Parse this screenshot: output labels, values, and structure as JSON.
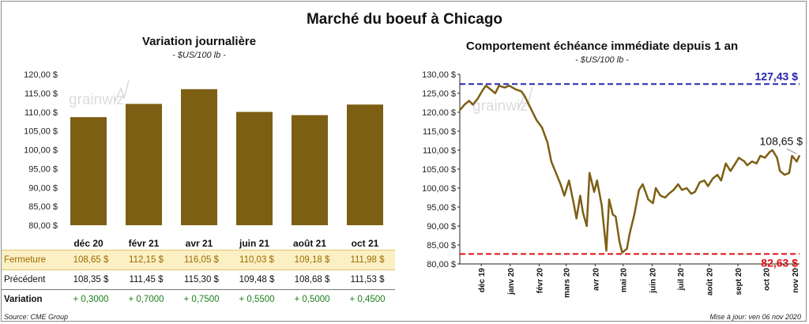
{
  "main_title": "Marché du boeuf à Chicago",
  "footer": {
    "source": "Source: CME Group",
    "updated": "Mise à jour: ven 06 nov 2020"
  },
  "watermark": "grainwiz",
  "colors": {
    "bar": "#7d5f14",
    "line": "#7d5f14",
    "high_line": "#2222aa",
    "low_line": "#dd1111",
    "fermeture_bg": "#fbf0c4",
    "fermeture_text": "#9c6a00",
    "variation_text": "#1a7f1a"
  },
  "table": {
    "rows": [
      {
        "label": "Fermeture",
        "values": [
          "108,65  $",
          "112,15  $",
          "116,05  $",
          "110,03  $",
          "109,18  $",
          "111,98  $"
        ]
      },
      {
        "label": "Précédent",
        "values": [
          "108,35  $",
          "111,45  $",
          "115,30  $",
          "109,48  $",
          "108,68  $",
          "111,53  $"
        ]
      },
      {
        "label": "Variation",
        "values": [
          "+ 0,3000",
          "+ 0,7000",
          "+ 0,7500",
          "+ 0,5500",
          "+ 0,5000",
          "+ 0,4500"
        ]
      }
    ]
  },
  "chart_data": [
    {
      "type": "bar",
      "title": "Variation  journalière",
      "subtitle": "- $US/100 lb -",
      "categories": [
        "déc 20",
        "févr 21",
        "avr 21",
        "juin 21",
        "août 21",
        "oct 21"
      ],
      "values": [
        108.65,
        112.15,
        116.05,
        110.03,
        109.18,
        111.98
      ],
      "ylim": [
        80,
        120
      ],
      "yticks": [
        80,
        85,
        90,
        95,
        100,
        105,
        110,
        115,
        120
      ],
      "ytick_labels": [
        "80,00 $",
        "85,00 $",
        "90,00 $",
        "95,00 $",
        "100,00 $",
        "105,00 $",
        "110,00 $",
        "115,00 $",
        "120,00 $"
      ],
      "grid": false
    },
    {
      "type": "line",
      "title": "Comportement  échéance immédiate depuis 1 an",
      "subtitle": "- $US/100 lb -",
      "ylim": [
        80,
        130
      ],
      "yticks": [
        80,
        85,
        90,
        95,
        100,
        105,
        110,
        115,
        120,
        125,
        130
      ],
      "ytick_labels": [
        "80,00 $",
        "85,00 $",
        "90,00 $",
        "95,00 $",
        "100,00 $",
        "105,00 $",
        "110,00 $",
        "115,00 $",
        "120,00 $",
        "125,00 $",
        "130,00 $"
      ],
      "xticks": [
        "déc 19",
        "janv 20",
        "févr 20",
        "mars 20",
        "avr 20",
        "mai 20",
        "juin 20",
        "juil 20",
        "août 20",
        "sept 20",
        "oct 20",
        "nov 20"
      ],
      "x_start": "2019-11-08",
      "x_end": "2020-11-06",
      "reference_lines": [
        {
          "label": "127,43 $",
          "value": 127.43
        },
        {
          "label": "82,63 $",
          "value": 82.63
        }
      ],
      "last_label": "108,65 $",
      "x": [
        "2019-11-08",
        "2019-11-13",
        "2019-11-18",
        "2019-11-22",
        "2019-11-27",
        "2019-12-03",
        "2019-12-06",
        "2019-12-11",
        "2019-12-16",
        "2019-12-20",
        "2019-12-26",
        "2019-12-31",
        "2020-01-07",
        "2020-01-13",
        "2020-01-17",
        "2020-01-23",
        "2020-01-29",
        "2020-02-04",
        "2020-02-10",
        "2020-02-14",
        "2020-02-19",
        "2020-02-24",
        "2020-02-28",
        "2020-03-04",
        "2020-03-09",
        "2020-03-12",
        "2020-03-16",
        "2020-03-19",
        "2020-03-23",
        "2020-03-26",
        "2020-03-31",
        "2020-04-03",
        "2020-04-08",
        "2020-04-13",
        "2020-04-16",
        "2020-04-20",
        "2020-04-23",
        "2020-04-27",
        "2020-04-30",
        "2020-05-05",
        "2020-05-08",
        "2020-05-13",
        "2020-05-18",
        "2020-05-22",
        "2020-05-28",
        "2020-06-02",
        "2020-06-05",
        "2020-06-10",
        "2020-06-15",
        "2020-06-19",
        "2020-06-24",
        "2020-06-29",
        "2020-07-03",
        "2020-07-08",
        "2020-07-13",
        "2020-07-17",
        "2020-07-22",
        "2020-07-27",
        "2020-07-31",
        "2020-08-05",
        "2020-08-10",
        "2020-08-14",
        "2020-08-19",
        "2020-08-24",
        "2020-08-28",
        "2020-09-02",
        "2020-09-08",
        "2020-09-11",
        "2020-09-16",
        "2020-09-21",
        "2020-09-25",
        "2020-09-30",
        "2020-10-05",
        "2020-10-08",
        "2020-10-13",
        "2020-10-16",
        "2020-10-21",
        "2020-10-26",
        "2020-10-29",
        "2020-11-03",
        "2020-11-06"
      ],
      "values": [
        120.5,
        122.0,
        123.0,
        122.0,
        123.5,
        126.0,
        127.0,
        126.0,
        125.0,
        127.0,
        126.5,
        127.0,
        126.0,
        125.5,
        124.0,
        121.0,
        118.0,
        116.0,
        112.0,
        107.0,
        104.0,
        101.0,
        98.0,
        102.0,
        96.0,
        92.0,
        98.0,
        93.5,
        90.0,
        104.0,
        99.0,
        102.0,
        95.5,
        83.5,
        97.0,
        93.0,
        92.5,
        86.0,
        83.0,
        84.0,
        88.0,
        93.0,
        99.5,
        101.0,
        97.0,
        96.0,
        100.0,
        98.0,
        97.5,
        98.5,
        99.5,
        101.0,
        99.5,
        100.0,
        98.5,
        99.0,
        101.5,
        102.0,
        100.5,
        102.5,
        103.5,
        102.0,
        106.5,
        104.5,
        106.0,
        108.0,
        107.0,
        106.0,
        107.0,
        106.5,
        108.5,
        108.0,
        109.5,
        110.0,
        108.0,
        104.5,
        103.5,
        104.0,
        108.5,
        107.0,
        108.65
      ]
    }
  ]
}
